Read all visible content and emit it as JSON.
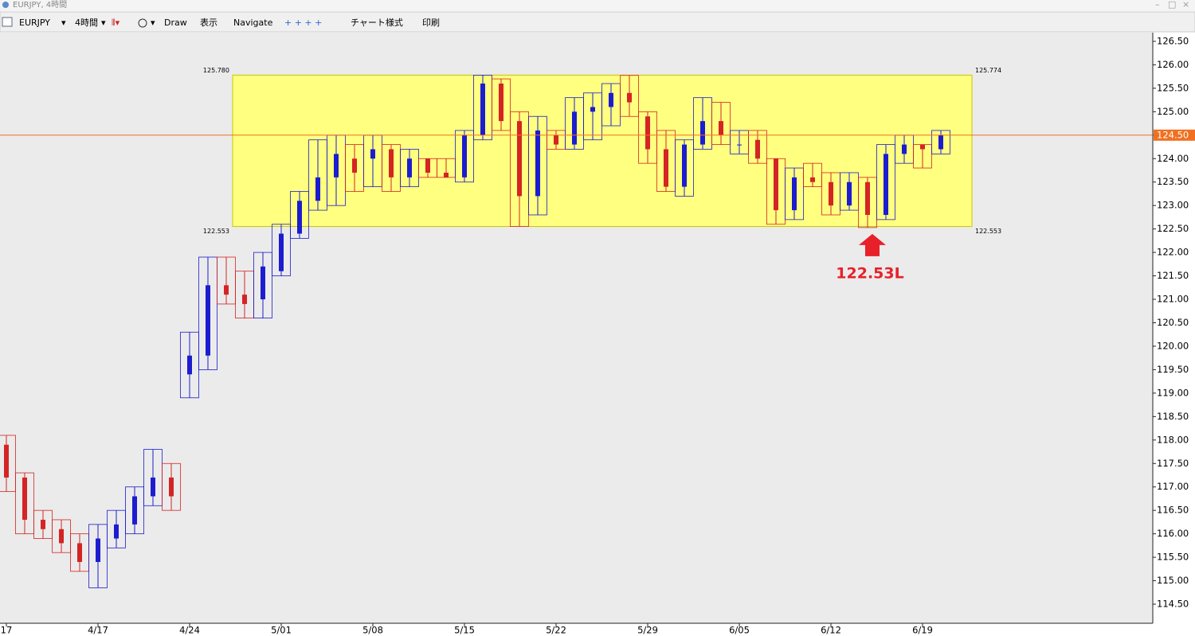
{
  "window": {
    "title": "EURJPY, 4時間"
  },
  "toolbar": {
    "symbol": "EURJPY",
    "timeframe": "4時間",
    "draw": "Draw",
    "view": "表示",
    "navigate": "Navigate",
    "chart_style": "チャート様式",
    "print": "印刷"
  },
  "chart_data": {
    "type": "candlestick",
    "categories": [
      "17",
      null,
      null,
      null,
      null,
      "4/17",
      null,
      null,
      null,
      null,
      "4/24",
      null,
      null,
      null,
      null,
      "5/01",
      null,
      null,
      null,
      null,
      "5/08",
      null,
      null,
      null,
      null,
      "5/15",
      null,
      null,
      null,
      null,
      "5/22",
      null,
      null,
      null,
      null,
      "5/29",
      null,
      null,
      null,
      null,
      "6/05",
      null,
      null,
      null,
      null,
      "6/12",
      null,
      null,
      null,
      null,
      "6/19",
      null
    ],
    "series": [
      {
        "name": "open",
        "values": [
          117.9,
          117.2,
          116.3,
          116.1,
          115.8,
          115.4,
          115.9,
          116.2,
          116.8,
          117.2,
          119.4,
          119.8,
          121.3,
          121.1,
          121.0,
          121.6,
          122.4,
          123.1,
          123.6,
          124.0,
          124.0,
          124.2,
          123.6,
          124.0,
          123.7,
          123.6,
          124.5,
          125.6,
          124.8,
          123.2,
          124.5,
          124.3,
          125.0,
          125.1,
          125.4,
          124.9,
          124.2,
          123.4,
          124.3,
          124.8,
          124.3,
          124.4,
          124.0,
          122.9,
          123.6,
          123.5,
          123.0,
          123.5,
          122.8,
          124.1,
          124.3,
          124.2
        ]
      },
      {
        "name": "high",
        "values": [
          118.1,
          117.3,
          116.5,
          116.3,
          116.0,
          116.2,
          116.5,
          117.0,
          117.8,
          117.5,
          120.3,
          121.9,
          121.9,
          121.6,
          122.0,
          122.6,
          123.3,
          124.4,
          124.5,
          124.3,
          124.5,
          124.3,
          124.2,
          124.0,
          124.0,
          124.6,
          125.78,
          125.7,
          125.0,
          124.9,
          124.6,
          125.3,
          125.4,
          125.6,
          125.774,
          125.0,
          124.6,
          124.4,
          125.3,
          125.2,
          124.6,
          124.6,
          124.0,
          123.8,
          123.9,
          123.7,
          123.7,
          123.6,
          124.3,
          124.5,
          124.3,
          124.6
        ]
      },
      {
        "name": "low",
        "values": [
          116.9,
          116.0,
          115.9,
          115.6,
          115.2,
          114.85,
          115.7,
          116.0,
          116.6,
          116.5,
          118.9,
          119.5,
          120.9,
          120.6,
          120.6,
          121.5,
          122.3,
          122.9,
          123.0,
          123.3,
          123.4,
          123.3,
          123.4,
          123.6,
          123.6,
          123.5,
          124.4,
          124.6,
          122.553,
          122.8,
          124.2,
          124.2,
          124.4,
          124.7,
          124.9,
          123.9,
          123.3,
          123.2,
          124.2,
          124.3,
          124.1,
          123.9,
          122.6,
          122.7,
          123.4,
          122.8,
          122.9,
          122.53,
          122.7,
          123.9,
          123.8,
          124.1
        ]
      },
      {
        "name": "close",
        "values": [
          117.2,
          116.3,
          116.1,
          115.8,
          115.4,
          115.9,
          116.2,
          116.8,
          117.2,
          116.8,
          119.8,
          121.3,
          121.1,
          120.9,
          121.7,
          122.4,
          123.1,
          123.6,
          124.1,
          123.7,
          124.2,
          123.6,
          124.0,
          123.7,
          123.6,
          124.5,
          125.6,
          124.8,
          123.2,
          124.6,
          124.3,
          125.0,
          125.1,
          125.4,
          125.2,
          124.2,
          123.4,
          124.3,
          124.8,
          124.5,
          124.3,
          124.0,
          122.9,
          123.6,
          123.5,
          123.0,
          123.5,
          122.8,
          124.1,
          124.3,
          124.2,
          124.5
        ]
      }
    ],
    "up_color": "#1c1cd0",
    "down_color": "#d42424",
    "ylim": [
      114.093,
      126.686
    ],
    "yticks": [
      {
        "value": 114.5,
        "label": "114.50"
      },
      {
        "value": 115,
        "label": "115.00"
      },
      {
        "value": 115.5,
        "label": "115.50"
      },
      {
        "value": 116,
        "label": "116.00"
      },
      {
        "value": 116.5,
        "label": "116.50"
      },
      {
        "value": 117,
        "label": "117.00"
      },
      {
        "value": 117.5,
        "label": "117.50"
      },
      {
        "value": 118,
        "label": "118.00"
      },
      {
        "value": 118.5,
        "label": "118.50"
      },
      {
        "value": 119,
        "label": "119.00"
      },
      {
        "value": 119.5,
        "label": "119.50"
      },
      {
        "value": 120,
        "label": "120.00"
      },
      {
        "value": 120.5,
        "label": "120.50"
      },
      {
        "value": 121,
        "label": "121.00"
      },
      {
        "value": 121.5,
        "label": "121.50"
      },
      {
        "value": 122,
        "label": "122.00"
      },
      {
        "value": 122.5,
        "label": "122.50"
      },
      {
        "value": 123,
        "label": "123.00"
      },
      {
        "value": 123.5,
        "label": "123.50"
      },
      {
        "value": 124,
        "label": "124.00"
      },
      {
        "value": 124.5,
        "label": "124.50"
      },
      {
        "value": 125,
        "label": "125.00"
      },
      {
        "value": 125.5,
        "label": "125.50"
      },
      {
        "value": 126,
        "label": "126.00"
      },
      {
        "value": 126.5,
        "label": "126.50"
      }
    ],
    "range_box": {
      "top_left": {
        "value": 125.78,
        "label": "125.780"
      },
      "top_right": 125.774,
      "bottom_left": 122.553,
      "bottom_right": 122.553,
      "color": "#ffff80"
    },
    "price_line": {
      "value": 124.5,
      "label": "124.50",
      "color": "#f07020"
    },
    "annotation": {
      "value": 122.53,
      "label": "122.53L",
      "color": "#e8202a"
    }
  }
}
